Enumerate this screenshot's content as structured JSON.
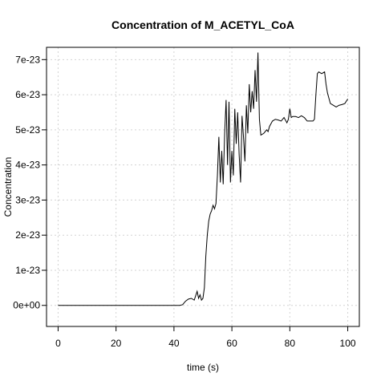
{
  "chart_data": {
    "type": "line",
    "title": "Concentration of M_ACETYL_CoA",
    "xlabel": "time (s)",
    "ylabel": "Concentration",
    "xlim": [
      -4,
      104
    ],
    "ylim": [
      -6e-24,
      7.35e-23
    ],
    "x_ticks": [
      0,
      20,
      40,
      60,
      80,
      100
    ],
    "x_tick_labels": [
      "0",
      "20",
      "40",
      "60",
      "80",
      "100"
    ],
    "y_ticks": [
      0,
      1e-23,
      2e-23,
      3e-23,
      4e-23,
      5e-23,
      6e-23,
      7e-23
    ],
    "y_tick_labels": [
      "0e+00",
      "1e-23",
      "2e-23",
      "3e-23",
      "4e-23",
      "5e-23",
      "6e-23",
      "7e-23"
    ],
    "grid": true,
    "line_color": "#000000",
    "grid_color": "#d3d3d3",
    "series": [
      {
        "x": [
          0,
          42,
          43,
          44,
          45,
          46,
          47,
          48,
          48.5,
          49,
          49.5,
          50,
          50.5,
          51,
          51.5,
          52,
          52.5,
          53,
          53.5,
          54,
          54.5,
          55,
          55.5,
          56,
          56.5,
          57,
          57.5,
          58,
          58.5,
          59,
          59.5,
          60,
          60.5,
          61,
          61.5,
          62,
          62.5,
          63,
          63.5,
          64,
          64.5,
          65,
          65.5,
          66,
          66.5,
          67,
          67.5,
          68,
          68.5,
          69,
          69.5,
          70,
          71,
          72,
          72.5,
          73,
          74,
          75,
          76,
          77,
          78,
          79,
          79.5,
          80,
          80.5,
          81,
          82,
          83,
          84,
          85,
          86,
          87,
          88,
          88.5,
          89,
          89.5,
          90,
          91,
          92,
          92.5,
          93,
          93.5,
          94,
          95,
          96,
          97,
          98,
          99,
          100
        ],
        "y": [
          0,
          0,
          2e-25,
          1.2e-24,
          1.8e-24,
          2e-24,
          1.5e-24,
          4e-24,
          2e-24,
          3e-24,
          1.5e-24,
          2e-24,
          5e-24,
          1.4e-23,
          2e-23,
          2.4e-23,
          2.6e-23,
          2.7e-23,
          2.85e-23,
          2.75e-23,
          2.9e-23,
          3.7e-23,
          4.8e-23,
          3.5e-23,
          4.4e-23,
          3.45e-23,
          4.9e-23,
          5.85e-23,
          4e-23,
          5.8e-23,
          3.5e-23,
          4.4e-23,
          3.7e-23,
          5.6e-23,
          4.6e-23,
          5.5e-23,
          4.3e-23,
          3.5e-23,
          5.4e-23,
          4.8e-23,
          4.1e-23,
          5.7e-23,
          4.9e-23,
          6.3e-23,
          5.5e-23,
          6.1e-23,
          5.6e-23,
          6.7e-23,
          5.8e-23,
          7.2e-23,
          5.3e-23,
          4.85e-23,
          4.9e-23,
          5e-23,
          4.95e-23,
          5.1e-23,
          5.25e-23,
          5.3e-23,
          5.28e-23,
          5.25e-23,
          5.35e-23,
          5.2e-23,
          5.3e-23,
          5.6e-23,
          5.35e-23,
          5.38e-23,
          5.38e-23,
          5.35e-23,
          5.4e-23,
          5.35e-23,
          5.25e-23,
          5.25e-23,
          5.25e-23,
          5.3e-23,
          6e-23,
          6.6e-23,
          6.65e-23,
          6.6e-23,
          6.65e-23,
          6.3e-23,
          6.05e-23,
          5.9e-23,
          5.75e-23,
          5.7e-23,
          5.65e-23,
          5.7e-23,
          5.72e-23,
          5.75e-23,
          5.88e-23
        ]
      }
    ]
  }
}
